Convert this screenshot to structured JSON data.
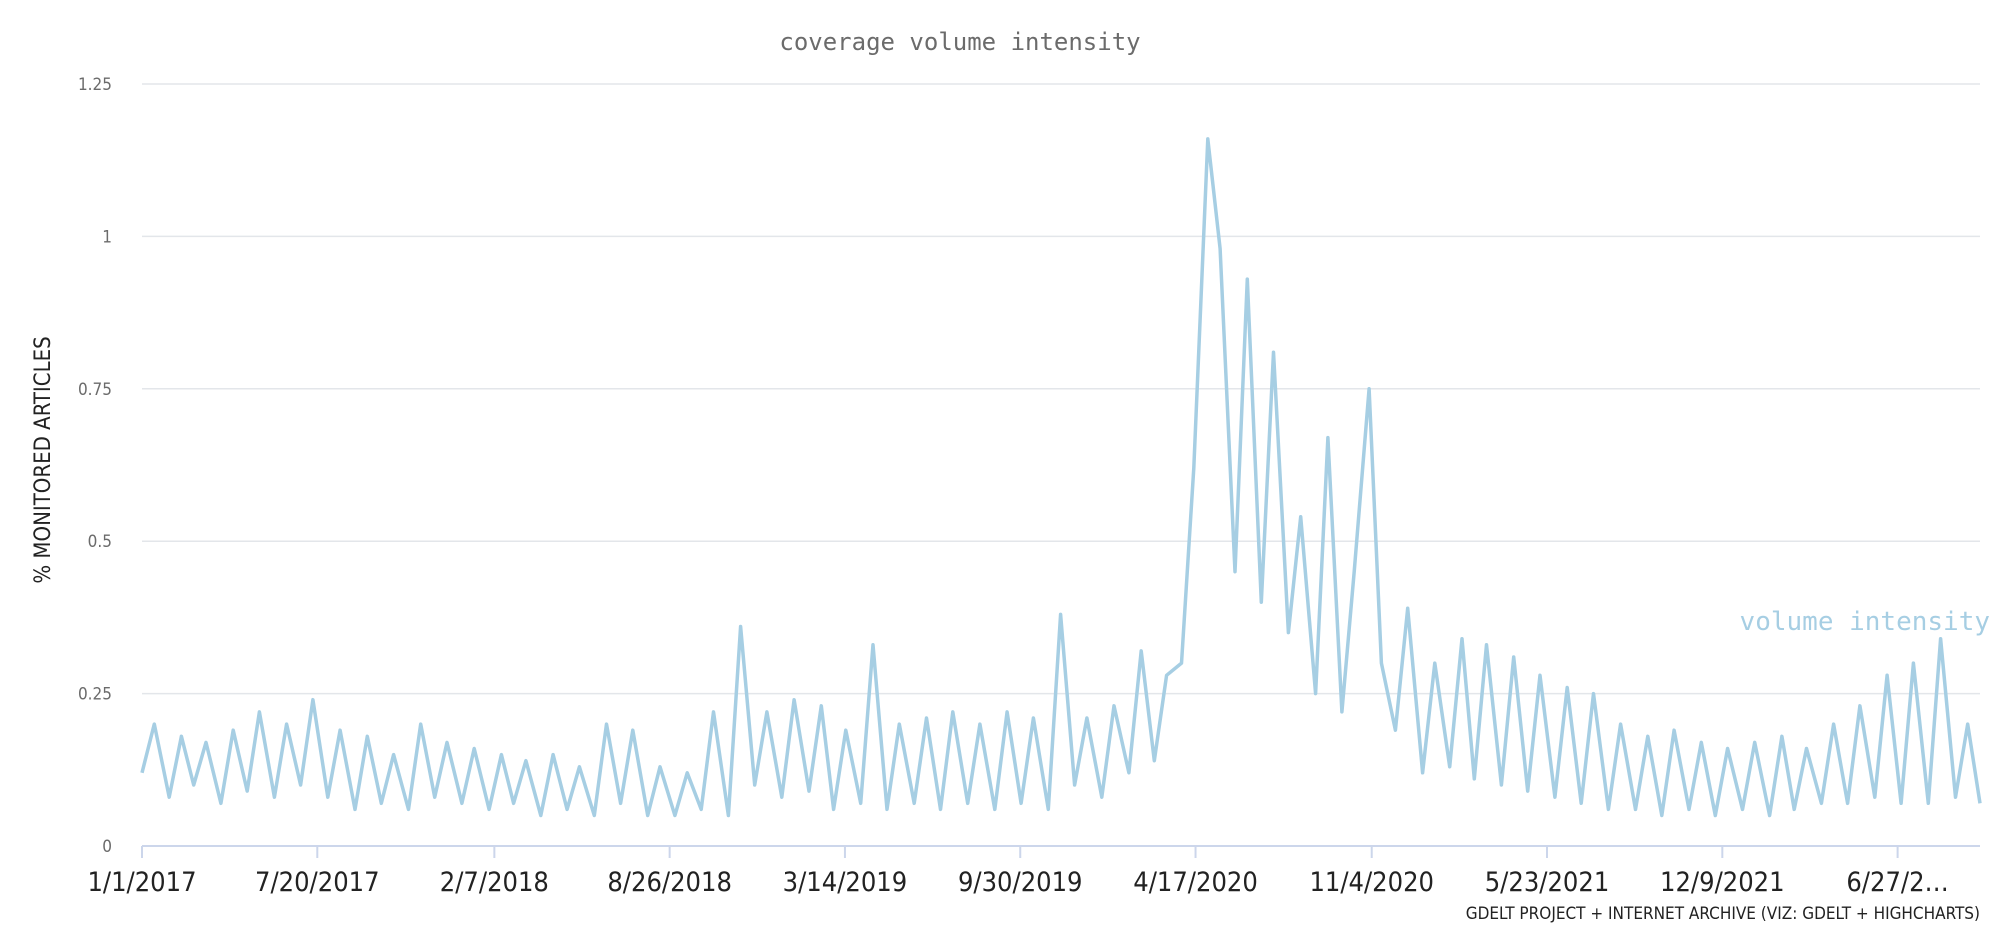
{
  "chart_data": {
    "type": "line",
    "title": "coverage volume intensity",
    "ylabel": "% MONITORED ARTICLES",
    "xlabel": "",
    "credit": "GDELT PROJECT + INTERNET ARCHIVE (VIZ: GDELT + HIGHCHARTS)",
    "ylim": [
      0,
      1.25
    ],
    "yticks": [
      0,
      0.25,
      0.5,
      0.75,
      1,
      1.25
    ],
    "ytick_labels": [
      "0",
      "0.25",
      "0.5",
      "0.75",
      "1",
      "1.25"
    ],
    "x_range": [
      "2017-01-01",
      "2022-09-29"
    ],
    "xtick_dates": [
      "2017-01-01",
      "2017-07-20",
      "2018-02-07",
      "2018-08-26",
      "2019-03-14",
      "2019-09-30",
      "2020-04-17",
      "2020-11-04",
      "2021-05-23",
      "2021-12-09",
      "2022-06-27"
    ],
    "xtick_labels": [
      "1/1/2017",
      "7/20/2017",
      "2/7/2018",
      "8/26/2018",
      "3/14/2019",
      "9/30/2019",
      "4/17/2020",
      "11/4/2020",
      "5/23/2021",
      "12/9/2021",
      "6/27/2…"
    ],
    "grid": true,
    "legend": "none",
    "series": [
      {
        "name": "volume intensity",
        "color": "#a6cee3",
        "x": [
          "2017-01-01",
          "2017-01-15",
          "2017-02-01",
          "2017-02-15",
          "2017-03-01",
          "2017-03-15",
          "2017-04-01",
          "2017-04-15",
          "2017-05-01",
          "2017-05-15",
          "2017-06-01",
          "2017-06-15",
          "2017-07-01",
          "2017-07-15",
          "2017-08-01",
          "2017-08-15",
          "2017-09-01",
          "2017-09-15",
          "2017-10-01",
          "2017-10-15",
          "2017-11-01",
          "2017-11-15",
          "2017-12-01",
          "2017-12-15",
          "2018-01-01",
          "2018-01-15",
          "2018-02-01",
          "2018-02-15",
          "2018-03-01",
          "2018-03-15",
          "2018-04-01",
          "2018-04-15",
          "2018-05-01",
          "2018-05-15",
          "2018-06-01",
          "2018-06-15",
          "2018-07-01",
          "2018-07-15",
          "2018-08-01",
          "2018-08-15",
          "2018-09-01",
          "2018-09-15",
          "2018-10-01",
          "2018-10-15",
          "2018-11-01",
          "2018-11-15",
          "2018-12-01",
          "2018-12-15",
          "2019-01-01",
          "2019-01-15",
          "2019-02-01",
          "2019-02-15",
          "2019-03-01",
          "2019-03-15",
          "2019-04-01",
          "2019-04-15",
          "2019-05-01",
          "2019-05-15",
          "2019-06-01",
          "2019-06-15",
          "2019-07-01",
          "2019-07-15",
          "2019-08-01",
          "2019-08-15",
          "2019-09-01",
          "2019-09-15",
          "2019-10-01",
          "2019-10-15",
          "2019-11-01",
          "2019-11-15",
          "2019-12-01",
          "2019-12-15",
          "2020-01-01",
          "2020-01-15",
          "2020-02-01",
          "2020-02-15",
          "2020-03-01",
          "2020-03-15",
          "2020-04-01",
          "2020-04-15",
          "2020-05-01",
          "2020-05-15",
          "2020-06-01",
          "2020-06-15",
          "2020-07-01",
          "2020-07-15",
          "2020-08-01",
          "2020-08-15",
          "2020-09-01",
          "2020-09-15",
          "2020-10-01",
          "2020-10-15",
          "2020-11-01",
          "2020-11-15",
          "2020-12-01",
          "2020-12-15",
          "2021-01-01",
          "2021-01-15",
          "2021-02-01",
          "2021-02-15",
          "2021-03-01",
          "2021-03-15",
          "2021-04-01",
          "2021-04-15",
          "2021-05-01",
          "2021-05-15",
          "2021-06-01",
          "2021-06-15",
          "2021-07-01",
          "2021-07-15",
          "2021-08-01",
          "2021-08-15",
          "2021-09-01",
          "2021-09-15",
          "2021-10-01",
          "2021-10-15",
          "2021-11-01",
          "2021-11-15",
          "2021-12-01",
          "2021-12-15",
          "2022-01-01",
          "2022-01-15",
          "2022-02-01",
          "2022-02-15",
          "2022-03-01",
          "2022-03-15",
          "2022-04-01",
          "2022-04-15",
          "2022-05-01",
          "2022-05-15",
          "2022-06-01",
          "2022-06-15",
          "2022-07-01",
          "2022-07-15",
          "2022-08-01",
          "2022-08-15",
          "2022-09-01",
          "2022-09-15",
          "2022-09-29"
        ],
        "y": [
          0.12,
          0.2,
          0.08,
          0.18,
          0.1,
          0.17,
          0.07,
          0.19,
          0.09,
          0.22,
          0.08,
          0.2,
          0.1,
          0.24,
          0.08,
          0.19,
          0.06,
          0.18,
          0.07,
          0.15,
          0.06,
          0.2,
          0.08,
          0.17,
          0.07,
          0.16,
          0.06,
          0.15,
          0.07,
          0.14,
          0.05,
          0.15,
          0.06,
          0.13,
          0.05,
          0.2,
          0.07,
          0.19,
          0.05,
          0.13,
          0.05,
          0.12,
          0.06,
          0.22,
          0.05,
          0.36,
          0.1,
          0.22,
          0.08,
          0.24,
          0.09,
          0.23,
          0.06,
          0.19,
          0.07,
          0.33,
          0.06,
          0.2,
          0.07,
          0.21,
          0.06,
          0.22,
          0.07,
          0.2,
          0.06,
          0.22,
          0.07,
          0.21,
          0.06,
          0.38,
          0.1,
          0.21,
          0.08,
          0.23,
          0.12,
          0.32,
          0.14,
          0.28,
          0.3,
          0.62,
          1.16,
          0.98,
          0.45,
          0.93,
          0.4,
          0.81,
          0.35,
          0.54,
          0.25,
          0.67,
          0.22,
          0.45,
          0.75,
          0.3,
          0.19,
          0.39,
          0.12,
          0.3,
          0.13,
          0.34,
          0.11,
          0.33,
          0.1,
          0.31,
          0.09,
          0.28,
          0.08,
          0.26,
          0.07,
          0.25,
          0.06,
          0.2,
          0.06,
          0.18,
          0.05,
          0.19,
          0.06,
          0.17,
          0.05,
          0.16,
          0.06,
          0.17,
          0.05,
          0.18,
          0.06,
          0.16,
          0.07,
          0.2,
          0.07,
          0.23,
          0.08,
          0.28,
          0.07,
          0.3,
          0.07,
          0.34,
          0.08,
          0.2,
          0.07
        ]
      }
    ]
  }
}
